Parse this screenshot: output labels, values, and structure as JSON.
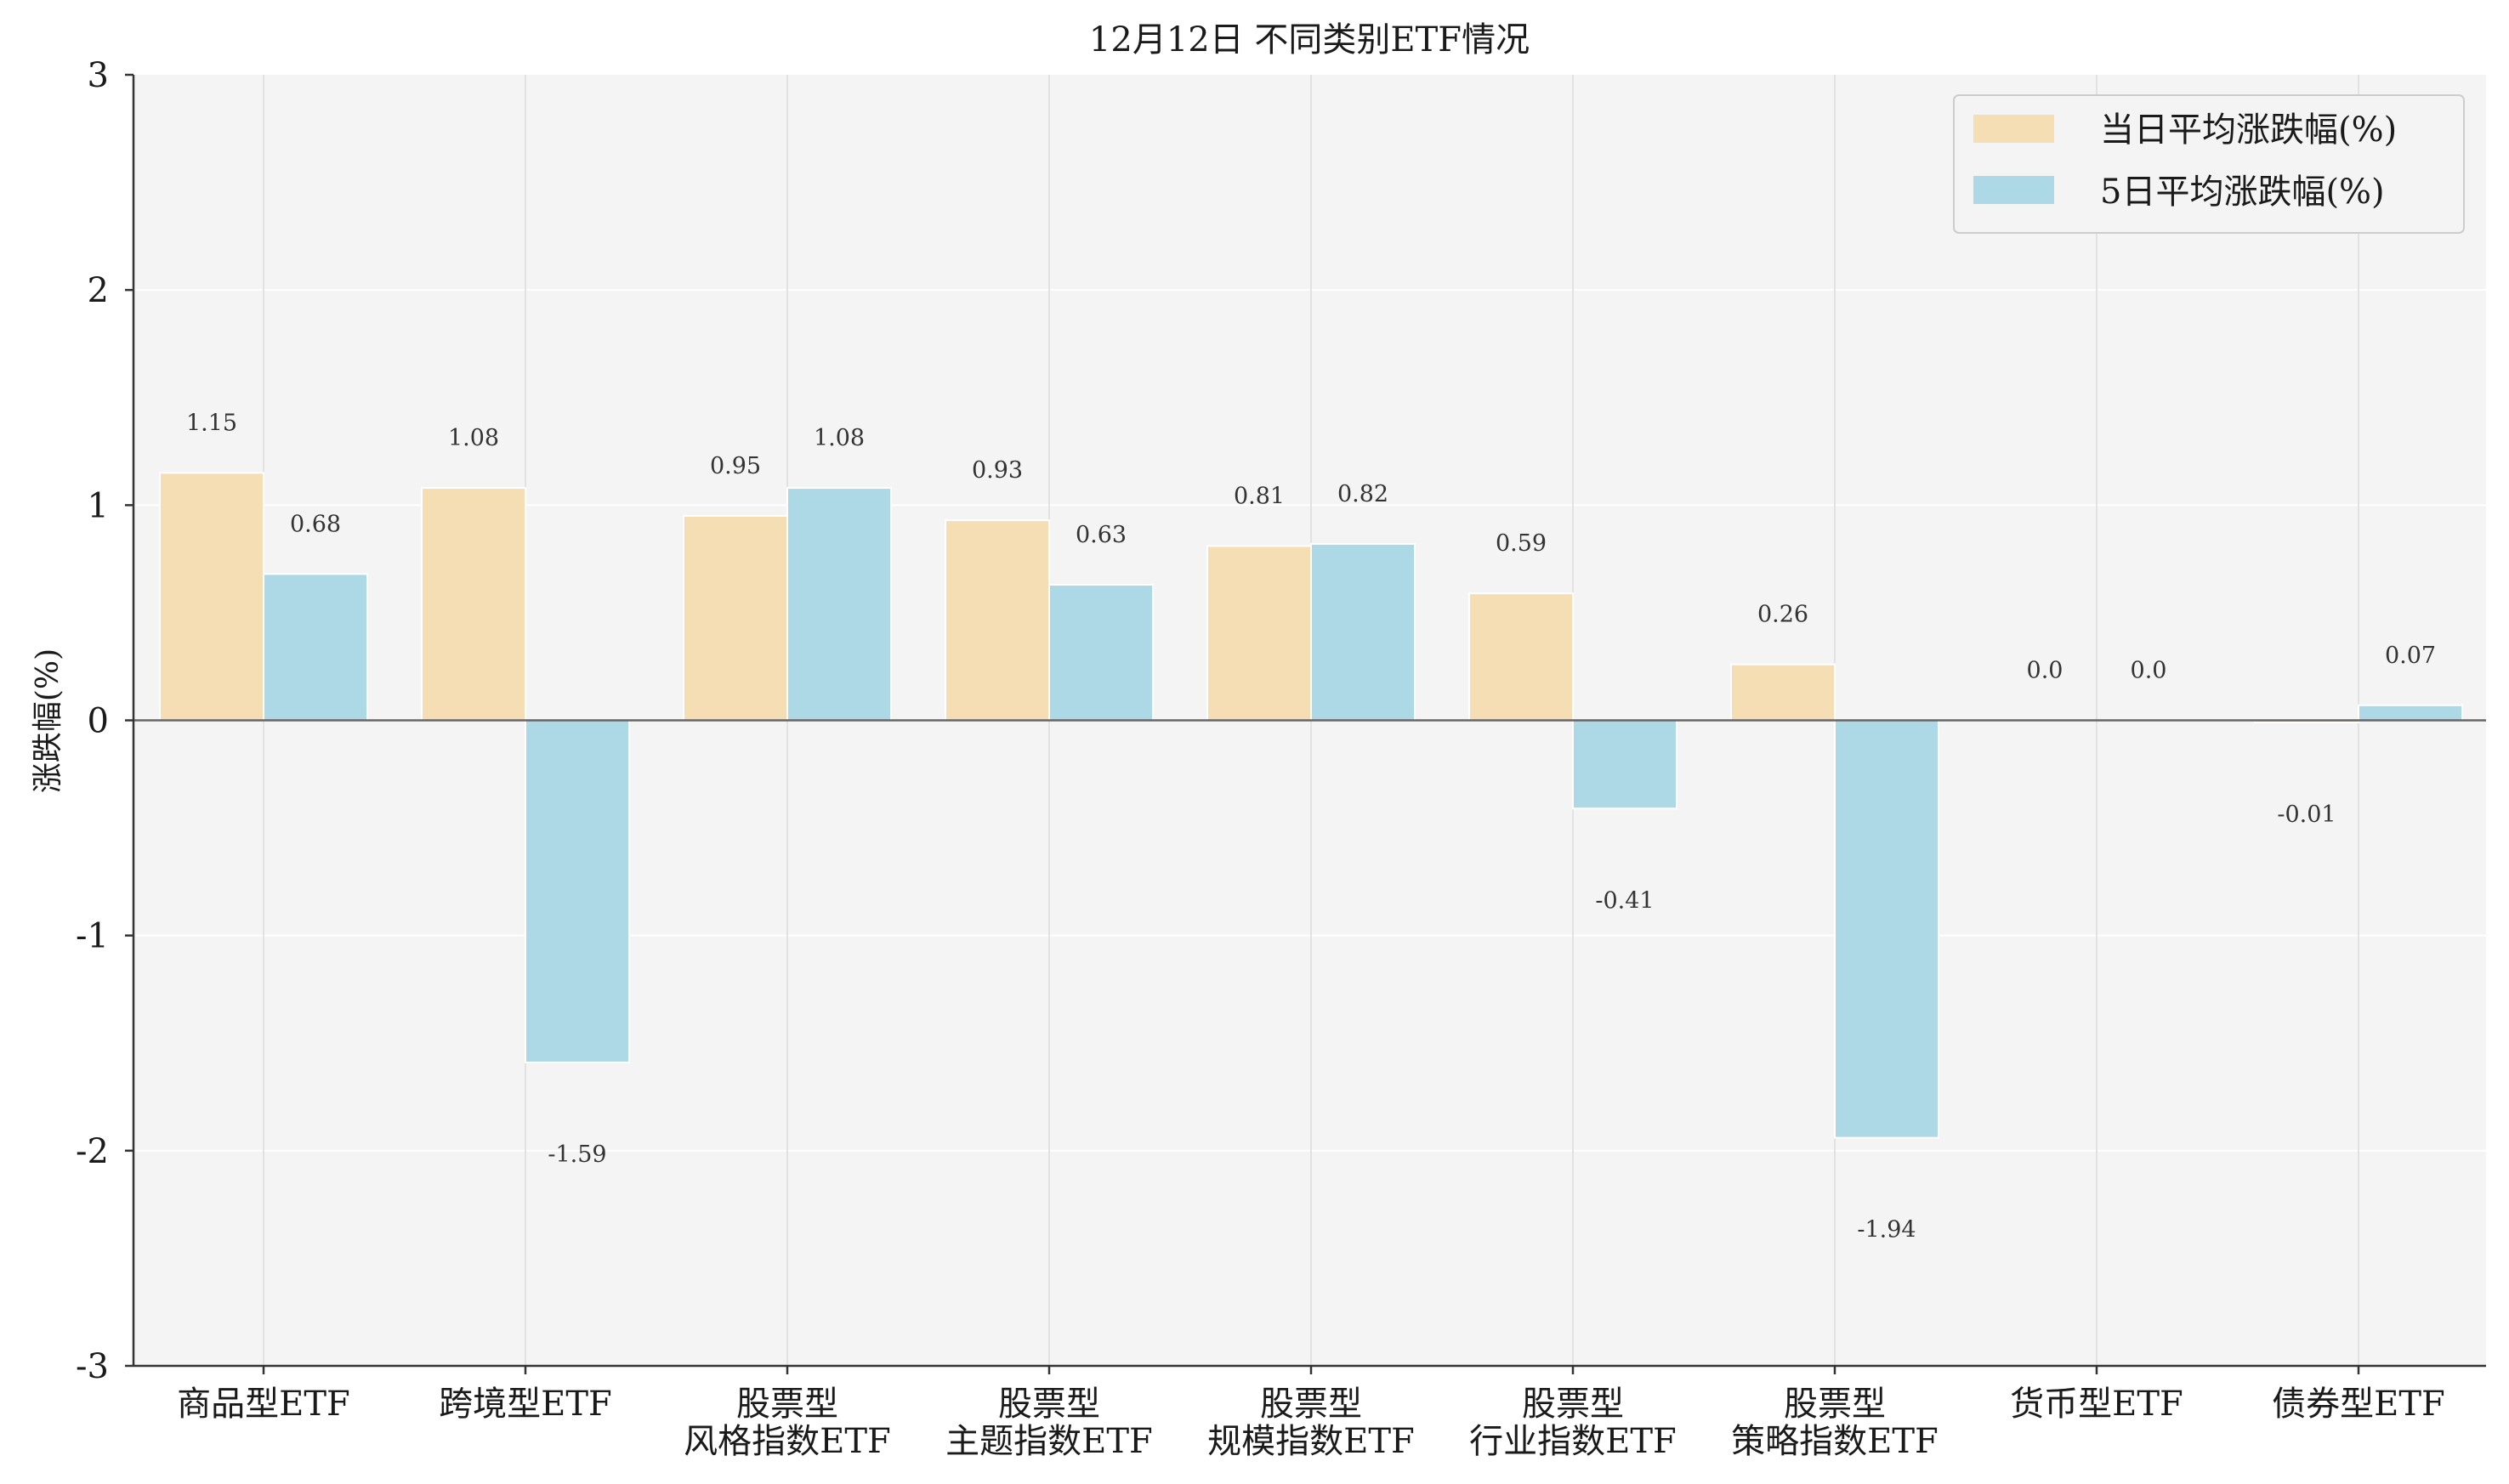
{
  "chart_data": {
    "type": "bar",
    "title": "12月12日 不同类别ETF情况",
    "xlabel": "",
    "ylabel": "涨跌幅(%)",
    "ylim": [
      -3,
      3
    ],
    "yticks": [
      -3,
      -2,
      -1,
      0,
      1,
      2,
      3
    ],
    "ytick_labels": [
      "-3",
      "-2",
      "-1",
      "0",
      "1",
      "2",
      "3"
    ],
    "grid": true,
    "legend_position": "top-right",
    "categories": [
      [
        "商品型ETF"
      ],
      [
        "跨境型ETF"
      ],
      [
        "股票型",
        "风格指数ETF"
      ],
      [
        "股票型",
        "主题指数ETF"
      ],
      [
        "股票型",
        "规模指数ETF"
      ],
      [
        "股票型",
        "行业指数ETF"
      ],
      [
        "股票型",
        "策略指数ETF"
      ],
      [
        "货币型ETF"
      ],
      [
        "债券型ETF"
      ]
    ],
    "series": [
      {
        "name": "当日平均涨跌幅(%)",
        "color": "#f5deb3",
        "values": [
          1.15,
          1.08,
          0.95,
          0.93,
          0.81,
          0.59,
          0.26,
          0.0,
          -0.01
        ],
        "labels": [
          "1.15",
          "1.08",
          "0.95",
          "0.93",
          "0.81",
          "0.59",
          "0.26",
          "0.0",
          "-0.01"
        ]
      },
      {
        "name": "5日平均涨跌幅(%)",
        "color": "#add8e6",
        "values": [
          0.68,
          -1.59,
          1.08,
          0.63,
          0.82,
          -0.41,
          -1.94,
          0.0,
          0.07
        ],
        "labels": [
          "0.68",
          "-1.59",
          "1.08",
          "0.63",
          "0.82",
          "-0.41",
          "-1.94",
          "0.0",
          "0.07"
        ]
      }
    ]
  }
}
